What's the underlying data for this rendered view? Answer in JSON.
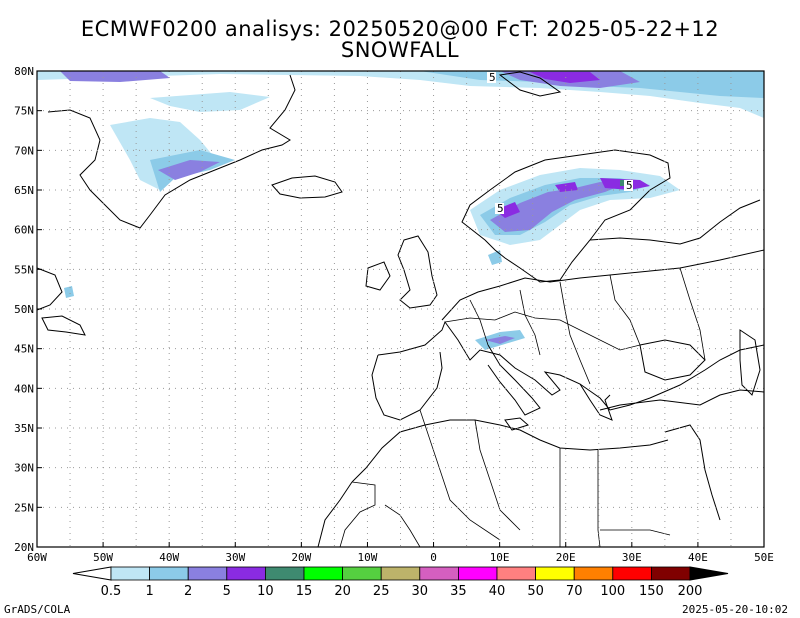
{
  "header": {
    "line1": "ECMWF0200 analisys: 20250520@00 FcT: 2025-05-22+12",
    "line2": "SNOWFALL"
  },
  "map": {
    "lon_range": [
      -60,
      50
    ],
    "lat_range": [
      20,
      80
    ],
    "lat_labels": [
      "80N",
      "75N",
      "70N",
      "65N",
      "60N",
      "55N",
      "50N",
      "45N",
      "40N",
      "35N",
      "30N",
      "25N",
      "20N"
    ],
    "lon_labels": [
      "60W",
      "50W",
      "40W",
      "30W",
      "20W",
      "10W",
      "0",
      "10E",
      "20E",
      "30E",
      "40E",
      "50E"
    ],
    "contour_labels": [
      "5",
      "5",
      "5"
    ],
    "grid": "dotted every 5 degrees"
  },
  "colorbar": {
    "labels": [
      "0.5",
      "1",
      "2",
      "5",
      "10",
      "15",
      "20",
      "25",
      "30",
      "35",
      "40",
      "50",
      "70",
      "100",
      "150",
      "200"
    ],
    "colors": [
      "#bfe6f5",
      "#8ccbe8",
      "#8a80e0",
      "#8a2be2",
      "#3e8a70",
      "#00ff00",
      "#55d040",
      "#bdb36a",
      "#d55fc0",
      "#ff00ff",
      "#ff8080",
      "#ffff00",
      "#ff8000",
      "#ff0000",
      "#800000",
      "#000000"
    ]
  },
  "footer": {
    "left": "GrADS/COLA",
    "right": "2025-05-20-10:02"
  }
}
